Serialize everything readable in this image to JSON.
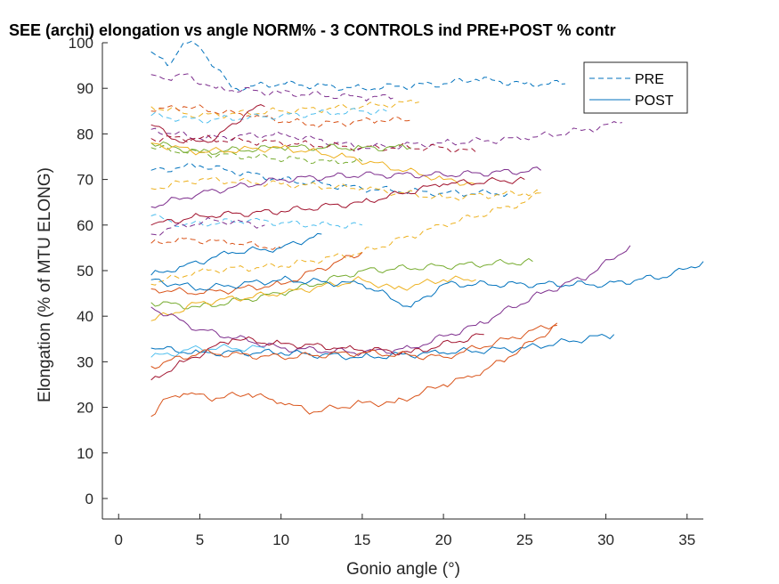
{
  "chart_data": {
    "type": "line",
    "title": "SEE (archi) elongation vs angle NORM% - 3 CONTROLS ind PRE+POST % contr",
    "xlabel": "Gonio angle (°)",
    "ylabel": "Elongation (% of MTU ELONG)",
    "xlim": [
      -1,
      36
    ],
    "ylim": [
      -4.5,
      100
    ],
    "xticks": [
      "0",
      "5",
      "10",
      "15",
      "20",
      "25",
      "30",
      "35"
    ],
    "yticks": [
      "0",
      "10",
      "20",
      "30",
      "40",
      "50",
      "60",
      "70",
      "80",
      "90",
      "100"
    ],
    "grid": false,
    "legend": {
      "position": "top-right",
      "entries": [
        "PRE",
        "POST"
      ]
    },
    "styles": {
      "PRE": "dashed",
      "POST": "solid"
    },
    "palette": [
      "#0072BD",
      "#D95319",
      "#EDB120",
      "#7E2F8E",
      "#77AC30",
      "#4DBEEE",
      "#A2142F"
    ],
    "series": [
      {
        "group": "PRE",
        "color": "#0072BD",
        "x": [
          2,
          3,
          4,
          5,
          7,
          10,
          15,
          20,
          22,
          25,
          27.5
        ],
        "y": [
          98,
          95,
          100,
          99,
          90,
          91,
          90,
          91,
          92,
          91,
          91
        ]
      },
      {
        "group": "PRE",
        "color": "#7E2F8E",
        "x": [
          2,
          3,
          4,
          6,
          10,
          15,
          17
        ],
        "y": [
          93,
          92,
          93,
          90,
          89,
          88,
          88
        ]
      },
      {
        "group": "PRE",
        "color": "#EDB120",
        "x": [
          2,
          5,
          10,
          15,
          18.5
        ],
        "y": [
          86,
          84,
          85,
          86,
          87
        ]
      },
      {
        "group": "PRE",
        "color": "#D95319",
        "x": [
          2,
          4,
          8,
          12,
          16,
          18
        ],
        "y": [
          85,
          86,
          84,
          82,
          83,
          83
        ]
      },
      {
        "group": "PRE",
        "color": "#4DBEEE",
        "x": [
          2,
          5,
          10,
          15,
          16.5
        ],
        "y": [
          84,
          83,
          84,
          85,
          85
        ]
      },
      {
        "group": "PRE",
        "color": "#7E2F8E",
        "x": [
          2,
          5,
          10,
          15,
          20,
          25,
          29,
          31
        ],
        "y": [
          81,
          79,
          80,
          77,
          78,
          79,
          81,
          82.5
        ]
      },
      {
        "group": "PRE",
        "color": "#A2142F",
        "x": [
          2,
          5,
          10,
          15,
          20,
          22
        ],
        "y": [
          79,
          79,
          78,
          77,
          77,
          76
        ]
      },
      {
        "group": "PRE",
        "color": "#77AC30",
        "x": [
          2,
          4,
          8,
          13,
          15
        ],
        "y": [
          77,
          76,
          75,
          74,
          74
        ]
      },
      {
        "group": "PRE",
        "color": "#0072BD",
        "x": [
          2,
          5,
          10,
          15,
          20,
          24
        ],
        "y": [
          72,
          73,
          70,
          68,
          67,
          67
        ]
      },
      {
        "group": "PRE",
        "color": "#EDB120",
        "x": [
          2,
          5,
          10,
          15,
          20,
          25,
          26
        ],
        "y": [
          68,
          70,
          69,
          68,
          66,
          67,
          67
        ]
      },
      {
        "group": "PRE",
        "color": "#EDB120",
        "x": [
          2,
          5,
          10,
          15,
          20,
          25,
          26
        ],
        "y": [
          47,
          50,
          51,
          54,
          60,
          65,
          67
        ]
      },
      {
        "group": "PRE",
        "color": "#4DBEEE",
        "x": [
          2,
          4,
          8,
          12,
          15
        ],
        "y": [
          62,
          60,
          61,
          60,
          60
        ]
      },
      {
        "group": "PRE",
        "color": "#D95319",
        "x": [
          2,
          4,
          7,
          10
        ],
        "y": [
          56,
          57,
          56,
          55
        ]
      },
      {
        "group": "PRE",
        "color": "#7E2F8E",
        "x": [
          2,
          4,
          6,
          9
        ],
        "y": [
          58,
          60,
          61,
          60
        ]
      },
      {
        "group": "POST",
        "color": "#77AC30",
        "x": [
          2,
          5,
          10,
          15,
          18
        ],
        "y": [
          78,
          76,
          77,
          77,
          77
        ]
      },
      {
        "group": "POST",
        "color": "#A2142F",
        "x": [
          2,
          4,
          6,
          8,
          9
        ],
        "y": [
          82,
          78,
          79,
          85,
          86
        ]
      },
      {
        "group": "POST",
        "color": "#EDB120",
        "x": [
          2,
          5,
          10,
          14,
          20,
          22
        ],
        "y": [
          78,
          76,
          77,
          75,
          70,
          69
        ]
      },
      {
        "group": "POST",
        "color": "#7E2F8E",
        "x": [
          2,
          5,
          10,
          15,
          20,
          26
        ],
        "y": [
          64,
          67,
          70,
          71,
          71,
          72
        ]
      },
      {
        "group": "POST",
        "color": "#A2142F",
        "x": [
          2,
          5,
          10,
          15,
          20,
          25
        ],
        "y": [
          60,
          62,
          63,
          65,
          69,
          70
        ]
      },
      {
        "group": "POST",
        "color": "#0072BD",
        "x": [
          2,
          4,
          7,
          10,
          12.5
        ],
        "y": [
          49,
          51,
          54,
          55,
          58
        ]
      },
      {
        "group": "POST",
        "color": "#D95319",
        "x": [
          2,
          5,
          10,
          15
        ],
        "y": [
          46,
          45,
          47,
          54
        ]
      },
      {
        "group": "POST",
        "color": "#77AC30",
        "x": [
          2,
          5,
          10,
          15,
          20,
          25.5
        ],
        "y": [
          43,
          42,
          45,
          50,
          51,
          52
        ]
      },
      {
        "group": "POST",
        "color": "#EDB120",
        "x": [
          2,
          5,
          10,
          15,
          17,
          20,
          22
        ],
        "y": [
          39,
          43,
          45,
          48,
          46,
          48,
          48
        ]
      },
      {
        "group": "POST",
        "color": "#0072BD",
        "x": [
          2,
          5,
          10,
          15,
          18,
          20,
          25,
          30,
          34,
          36
        ],
        "y": [
          48,
          46,
          48,
          47,
          42,
          47,
          47,
          47,
          49,
          52
        ]
      },
      {
        "group": "POST",
        "color": "#7E2F8E",
        "x": [
          2,
          5,
          10,
          15,
          18,
          22,
          26,
          29,
          31.5
        ],
        "y": [
          42,
          37,
          33,
          32,
          33,
          38,
          45,
          49,
          55.5
        ]
      },
      {
        "group": "POST",
        "color": "#0072BD",
        "x": [
          2,
          5,
          10,
          15,
          20,
          25,
          30.5
        ],
        "y": [
          33,
          32,
          32,
          31,
          32,
          33,
          36
        ]
      },
      {
        "group": "POST",
        "color": "#4DBEEE",
        "x": [
          2,
          5,
          9
        ],
        "y": [
          31,
          33,
          33
        ]
      },
      {
        "group": "POST",
        "color": "#A2142F",
        "x": [
          2,
          4,
          7,
          10,
          14,
          18,
          22.5
        ],
        "y": [
          26,
          30,
          35,
          34,
          33,
          32,
          36
        ]
      },
      {
        "group": "POST",
        "color": "#D95319",
        "x": [
          2,
          5,
          10,
          15,
          20,
          24,
          27
        ],
        "y": [
          29,
          32,
          31,
          32,
          31,
          35,
          38.5
        ]
      },
      {
        "group": "POST",
        "color": "#D95319",
        "x": [
          2,
          3,
          4,
          6,
          8,
          10,
          12,
          15,
          17,
          20,
          22,
          24,
          27
        ],
        "y": [
          18,
          22,
          23,
          22,
          23,
          21,
          19,
          21,
          21,
          25,
          27,
          31,
          38
        ]
      }
    ]
  }
}
